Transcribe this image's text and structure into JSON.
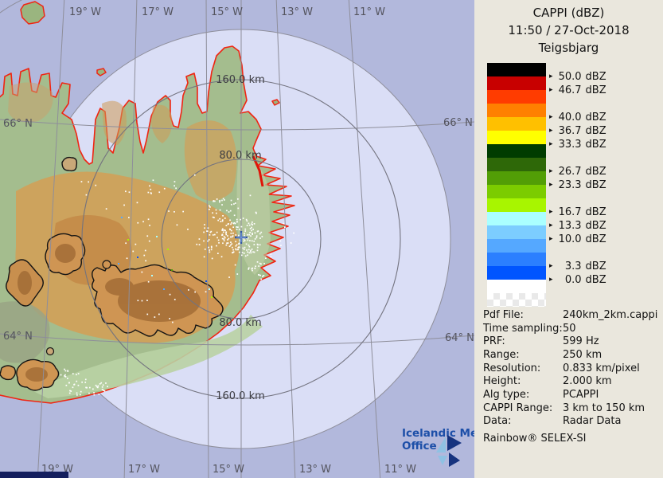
{
  "panel": {
    "title": "CAPPI (dBZ)",
    "datetime": "11:50 / 27-Oct-2018",
    "station": "Teigsbjarg",
    "legend": {
      "bands": [
        {
          "color": "#000000",
          "label": "50.0 dBZ"
        },
        {
          "color": "#c80000",
          "label": "46.7 dBZ"
        },
        {
          "color": "#ff3c00",
          "label": null
        },
        {
          "color": "#ff8000",
          "label": "40.0 dBZ"
        },
        {
          "color": "#ffc000",
          "label": "36.7 dBZ"
        },
        {
          "color": "#ffff00",
          "label": "33.3 dBZ"
        },
        {
          "color": "#003c00",
          "label": null
        },
        {
          "color": "#2e6808",
          "label": "26.7 dBZ"
        },
        {
          "color": "#529e06",
          "label": "23.3 dBZ"
        },
        {
          "color": "#7ccc00",
          "label": null
        },
        {
          "color": "#a8f500",
          "label": "16.7 dBZ"
        },
        {
          "color": "#aaffff",
          "label": "13.3 dBZ"
        },
        {
          "color": "#7ccdff",
          "label": "10.0 dBZ"
        },
        {
          "color": "#55a8ff",
          "label": null
        },
        {
          "color": "#2b7fff",
          "label": "3.3 dBZ"
        },
        {
          "color": "#0055ff",
          "label": "0.0 dBZ"
        },
        {
          "color": "#ffffff",
          "label": null
        },
        {
          "color": "checker",
          "label": null
        }
      ]
    },
    "metadata": {
      "rows": [
        {
          "label": "Pdf File:",
          "value": "240km_2km.cappi"
        },
        {
          "label": "Time sampling:",
          "value": "50"
        },
        {
          "label": "PRF:",
          "value": "599 Hz"
        },
        {
          "label": "Range:",
          "value": "250 km"
        },
        {
          "label": "Resolution:",
          "value": "0.833 km/pixel"
        },
        {
          "label": "Height:",
          "value": "2.000 km"
        },
        {
          "label": "Alg type:",
          "value": "PCAPPI"
        },
        {
          "label": "CAPPI Range:",
          "value": "3 km to 150 km"
        },
        {
          "label": "Data:",
          "value": "Radar Data"
        }
      ],
      "footer": "Rainbow® SELEX-SI"
    }
  },
  "map": {
    "lon_labels": [
      "19° W",
      "17° W",
      "15° W",
      "13° W",
      "11° W"
    ],
    "lat_labels": [
      "66° N",
      "64° N"
    ],
    "ring_labels": {
      "top_160": "160.0 km",
      "top_80": "80.0 km",
      "bottom_80": "80.0 km",
      "bottom_160": "160.0 km"
    },
    "logo": {
      "line1": "Icelandic Met",
      "line2": "Office"
    },
    "colors": {
      "ocean_outer": "#b2b8dc",
      "ocean_inner": "#dadef6",
      "land_green": "#a4bd8e",
      "highland_orange": "#d2a058",
      "coast_red": "#f02513",
      "glacier_outline": "#141414",
      "grid_gray": "#8e8e9a",
      "logo_blue": "#1d4fa8"
    }
  }
}
